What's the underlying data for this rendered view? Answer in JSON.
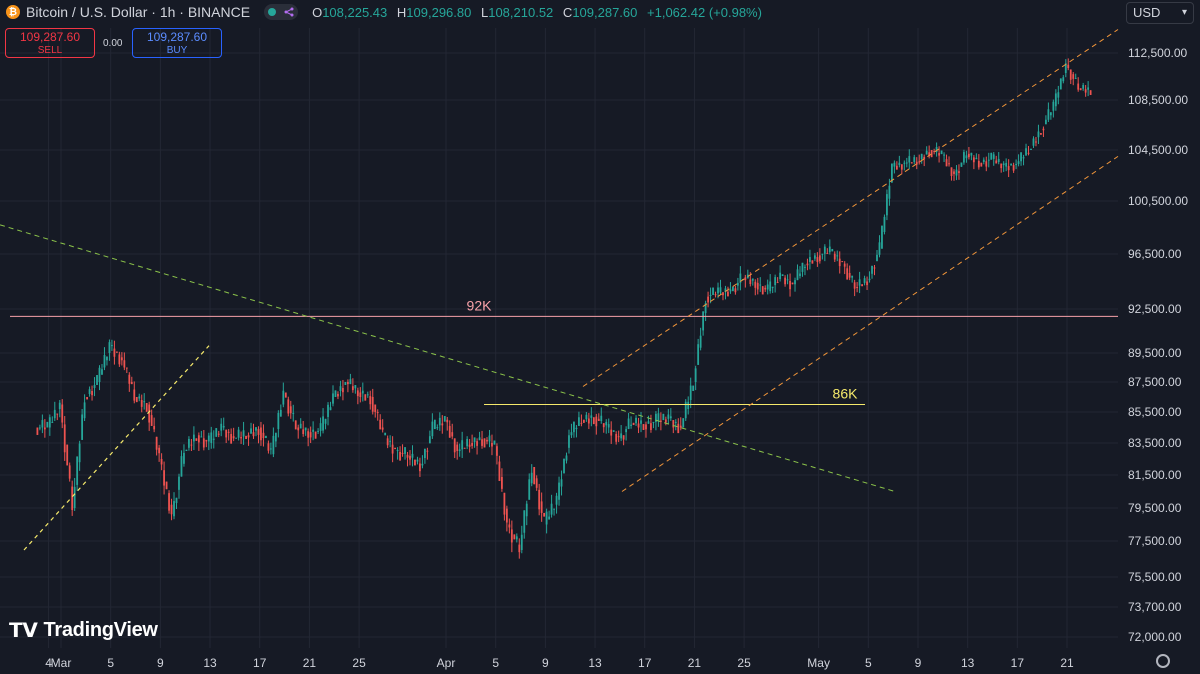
{
  "header": {
    "symbol_title": "Bitcoin / U.S. Dollar · 1h · BINANCE",
    "open_label": "O",
    "open": "108,225.43",
    "high_label": "H",
    "high": "109,296.80",
    "low_label": "L",
    "low": "108,210.52",
    "close_label": "C",
    "close": "109,287.60",
    "change": "+1,062.42 (+0.98%)"
  },
  "trade": {
    "sell_price": "109,287.60",
    "sell_label": "SELL",
    "spread": "0.00",
    "buy_price": "109,287.60",
    "buy_label": "BUY"
  },
  "currency": "USD",
  "brand": "TradingView",
  "colors": {
    "background": "#161a25",
    "up": "#26a69a",
    "down": "#ef5350",
    "level_92k": "#f7a1a8",
    "level_86k": "#f5e96b",
    "channel": "#f0953a",
    "downtrend": "#8bc34a",
    "support": "#f5e96b"
  },
  "chart_data": {
    "type": "line",
    "title": "",
    "series": [
      {
        "x": [
          "2025-02-28",
          "2025-03-01",
          "2025-03-02",
          "2025-03-03",
          "2025-03-04",
          "2025-03-05",
          "2025-03-06",
          "2025-03-07",
          "2025-03-08",
          "2025-03-09",
          "2025-03-10",
          "2025-03-11",
          "2025-03-12",
          "2025-03-13",
          "2025-03-14",
          "2025-03-15",
          "2025-03-16",
          "2025-03-17",
          "2025-03-18",
          "2025-03-19",
          "2025-03-20",
          "2025-03-21",
          "2025-03-22",
          "2025-03-23",
          "2025-03-24",
          "2025-03-25",
          "2025-03-26",
          "2025-03-27",
          "2025-03-28",
          "2025-03-29",
          "2025-03-30",
          "2025-03-31",
          "2025-04-01",
          "2025-04-02",
          "2025-04-03",
          "2025-04-04",
          "2025-04-05",
          "2025-04-06",
          "2025-04-07",
          "2025-04-08",
          "2025-04-09",
          "2025-04-10",
          "2025-04-11",
          "2025-04-12",
          "2025-04-13",
          "2025-04-14",
          "2025-04-15",
          "2025-04-16",
          "2025-04-17",
          "2025-04-18",
          "2025-04-19",
          "2025-04-20",
          "2025-04-21",
          "2025-04-22",
          "2025-04-23",
          "2025-04-24",
          "2025-04-25",
          "2025-04-26",
          "2025-04-27",
          "2025-04-28",
          "2025-04-29",
          "2025-04-30",
          "2025-05-01",
          "2025-05-02",
          "2025-05-03",
          "2025-05-04",
          "2025-05-05",
          "2025-05-06",
          "2025-05-07",
          "2025-05-08",
          "2025-05-09",
          "2025-05-10",
          "2025-05-11",
          "2025-05-12",
          "2025-05-13",
          "2025-05-14",
          "2025-05-15",
          "2025-05-16",
          "2025-05-17",
          "2025-05-18",
          "2025-05-19",
          "2025-05-20",
          "2025-05-21",
          "2025-05-22",
          "2025-05-23"
        ],
        "values": [
          84500,
          86000,
          79500,
          86500,
          87500,
          90000,
          89000,
          86500,
          86000,
          82500,
          79000,
          83000,
          84000,
          83500,
          84500,
          83800,
          84000,
          84500,
          82800,
          86800,
          84500,
          84200,
          84300,
          86500,
          87500,
          86800,
          86500,
          84000,
          83000,
          82700,
          82100,
          84400,
          85000,
          83000,
          83500,
          83800,
          83300,
          78500,
          77000,
          82000,
          78500,
          80000,
          84000,
          85000,
          85200,
          84500,
          83800,
          84800,
          84700,
          84900,
          85100,
          84500,
          87500,
          93400,
          93700,
          93800,
          94800,
          94400,
          93800,
          94900,
          94300,
          95800,
          96400,
          96700,
          95800,
          94100,
          94600,
          96900,
          103200,
          103500,
          103600,
          104500,
          104100,
          102500,
          104200,
          103500,
          103800,
          103200,
          103400,
          104500,
          106200,
          108000,
          111500,
          109500,
          109287.6
        ]
      }
    ],
    "y_ticks": [
      "112,500.00",
      "108,500.00",
      "104,500.00",
      "100,500.00",
      "96,500.00",
      "92,500.00",
      "89,500.00",
      "87,500.00",
      "85,500.00",
      "83,500.00",
      "81,500.00",
      "79,500.00",
      "77,500.00",
      "75,500.00",
      "73,700.00",
      "72,000.00"
    ],
    "x_ticks": [
      "4",
      "Mar",
      "5",
      "9",
      "13",
      "17",
      "21",
      "25",
      "Apr",
      "5",
      "9",
      "13",
      "17",
      "21",
      "25",
      "May",
      "5",
      "9",
      "13",
      "17",
      "21"
    ],
    "annotations": [
      {
        "label": "92K",
        "value": 92000,
        "color": "#f7a1a8"
      },
      {
        "label": "86K",
        "value": 86000,
        "color": "#f5e96b"
      }
    ],
    "grid": true,
    "candlestick": true
  }
}
